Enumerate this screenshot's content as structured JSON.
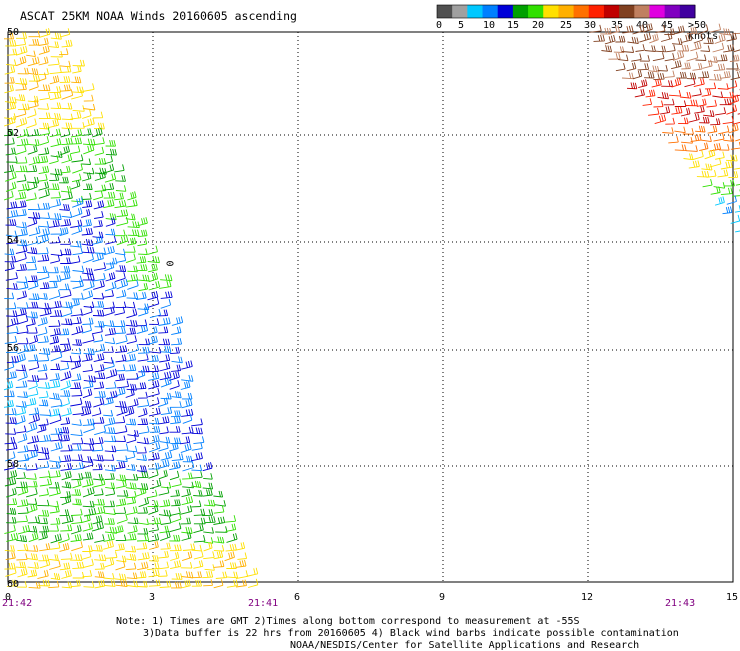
{
  "title": "ASCAT 25KM NOAA Winds 20160605 ascending",
  "colorbar": {
    "colors": [
      "#505050",
      "#a0a0a0",
      "#00c8ff",
      "#0080ff",
      "#0000d8",
      "#00a000",
      "#30e000",
      "#ffe000",
      "#ffb000",
      "#ff7000",
      "#ff2000",
      "#c00000",
      "#804020",
      "#c08060",
      "#e000e0",
      "#8000c0",
      "#4000a0"
    ],
    "labels": [
      "0",
      "5",
      "10",
      "15",
      "20",
      "25",
      "30",
      "35",
      "40",
      "45",
      ">50 knots"
    ]
  },
  "map": {
    "lat_labels": [
      "50",
      "52",
      "54",
      "56",
      "58",
      "60"
    ],
    "lon_labels": [
      "0",
      "3",
      "6",
      "9",
      "12",
      "15"
    ],
    "time_labels": [
      {
        "text": "21:42",
        "position": "left"
      },
      {
        "text": "21:41",
        "position": "center-left"
      },
      {
        "text": "21:43",
        "position": "right"
      }
    ],
    "annotation": "0"
  },
  "notes": [
    "Note: 1) Times are GMT 2)Times along bottom correspond to measurement at -55S",
    "3)Data buffer is 22 hrs from 20160605 4) Black wind barbs indicate possible contamination",
    "NOAA/NESDIS/Center for Satellite Applications and Research"
  ]
}
